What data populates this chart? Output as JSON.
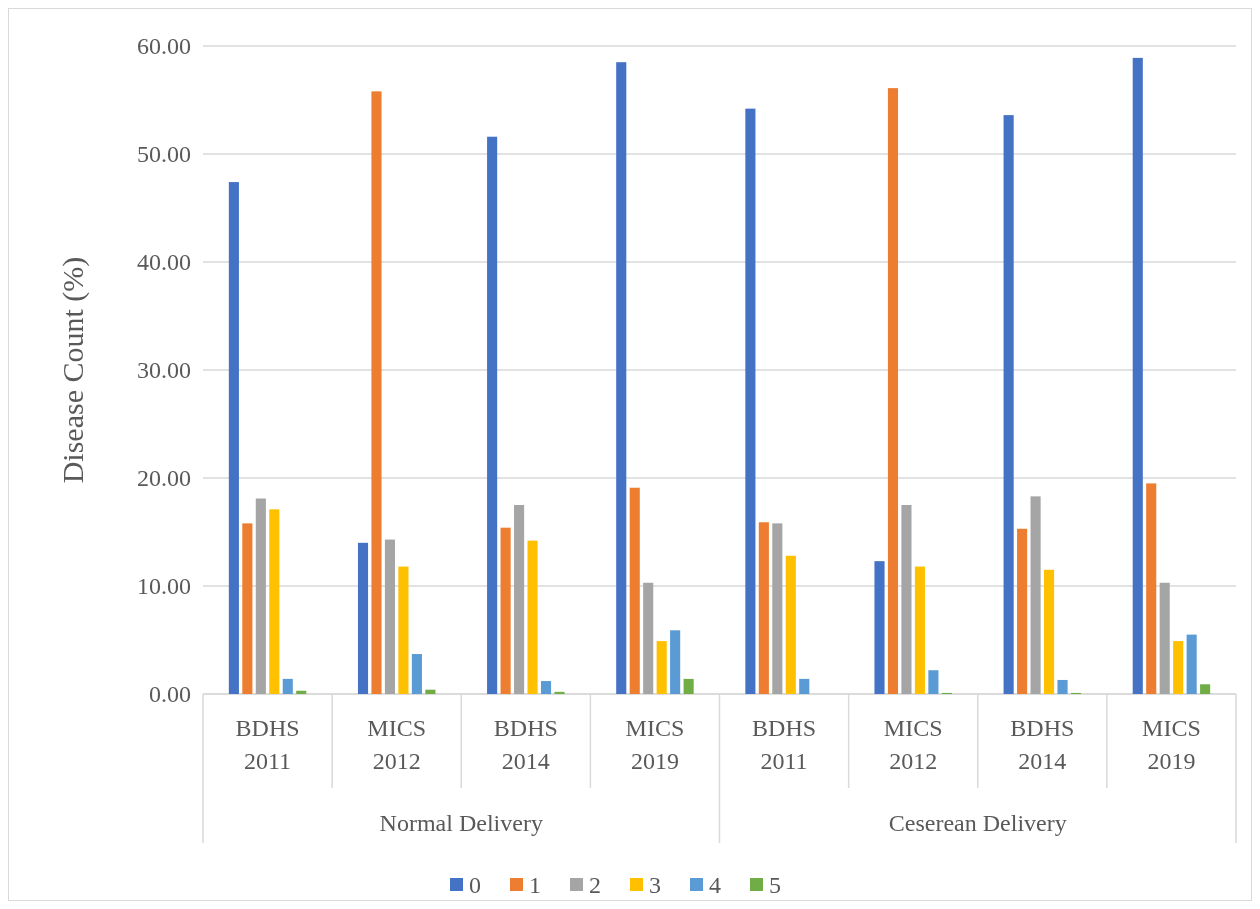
{
  "chart_data": {
    "type": "bar",
    "ylabel": "Disease Count (%)",
    "categories": [
      "BDHS 2011",
      "MICS 2012",
      "BDHS 2014",
      "MICS 2019",
      "BDHS 2011",
      "MICS 2012",
      "BDHS 2014",
      "MICS 2019"
    ],
    "annotations": [
      "Normal Delivery",
      "Ceserean Delivery"
    ],
    "ylim": [
      0,
      60
    ],
    "yticks": [
      {
        "value": 0,
        "label": "0.00"
      },
      {
        "value": 10,
        "label": "10.00"
      },
      {
        "value": 20,
        "label": "20.00"
      },
      {
        "value": 30,
        "label": "30.00"
      },
      {
        "value": 40,
        "label": "40.00"
      },
      {
        "value": 50,
        "label": "50.00"
      },
      {
        "value": 60,
        "label": "60.00"
      }
    ],
    "grid": "y",
    "legend": "bottom",
    "series": [
      {
        "name": "0",
        "color": "#4472c4",
        "values": [
          47.4,
          14.0,
          51.6,
          58.5,
          54.2,
          12.3,
          53.6,
          58.9
        ]
      },
      {
        "name": "1",
        "color": "#ed7d31",
        "values": [
          15.8,
          55.8,
          15.4,
          19.1,
          15.9,
          56.1,
          15.3,
          19.5
        ]
      },
      {
        "name": "2",
        "color": "#a5a5a5",
        "values": [
          18.1,
          14.3,
          17.5,
          10.3,
          15.8,
          17.5,
          18.3,
          10.3
        ]
      },
      {
        "name": "3",
        "color": "#ffc000",
        "values": [
          17.1,
          11.8,
          14.2,
          4.9,
          12.8,
          11.8,
          11.5,
          4.9
        ]
      },
      {
        "name": "4",
        "color": "#5b9bd5",
        "values": [
          1.4,
          3.7,
          1.2,
          5.9,
          1.4,
          2.2,
          1.3,
          5.5
        ]
      },
      {
        "name": "5",
        "color": "#70ad47",
        "values": [
          0.3,
          0.4,
          0.2,
          1.4,
          0,
          0.1,
          0.1,
          0.9
        ]
      }
    ]
  }
}
